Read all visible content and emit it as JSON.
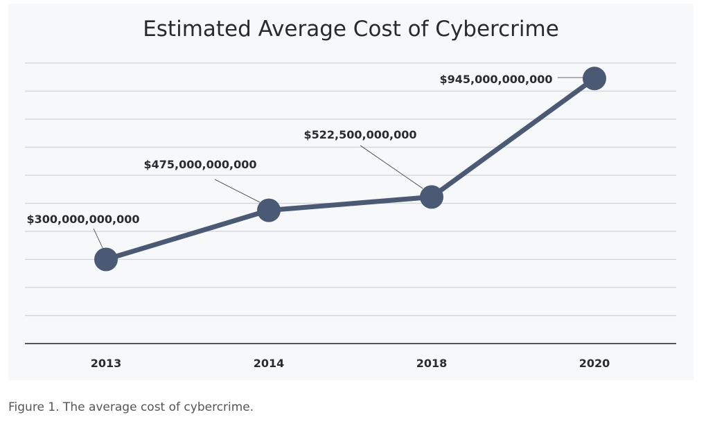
{
  "chart_data": {
    "type": "line",
    "title": "Estimated Average Cost of Cybercrime",
    "categories": [
      "2013",
      "2014",
      "2018",
      "2020"
    ],
    "values": [
      300000000000,
      475000000000,
      522500000000,
      945000000000
    ],
    "data_labels": [
      "$300,000,000,000",
      "$475,000,000,000",
      "$522,500,000,000",
      "$945,000,000,000"
    ],
    "xlabel": "",
    "ylabel": "",
    "ylim": [
      0,
      1000000000000
    ],
    "y_grid_step": 100000000000,
    "grid": true,
    "y_tick_labels_shown": false,
    "colors": {
      "line": "#4a5a75",
      "grid": "#d0d3d8",
      "axis": "#555555",
      "background": "#f6f8fa"
    }
  },
  "caption": "Figure 1. The average cost of cybercrime."
}
